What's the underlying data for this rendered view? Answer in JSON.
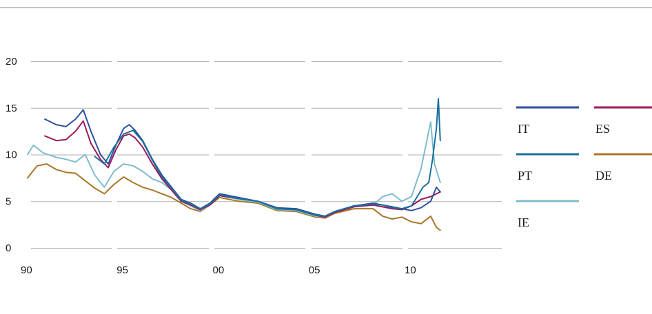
{
  "chart_data": {
    "type": "line",
    "title": "",
    "xlabel": "",
    "ylabel": "",
    "xlim": [
      1990,
      2015
    ],
    "ylim": [
      0,
      20
    ],
    "x_ticks": [
      {
        "value": 1990,
        "label": "90"
      },
      {
        "value": 1995,
        "label": "95"
      },
      {
        "value": 2000,
        "label": "00"
      },
      {
        "value": 2005,
        "label": "05"
      },
      {
        "value": 2010,
        "label": "10"
      }
    ],
    "y_ticks": [
      0,
      5,
      10,
      15,
      20
    ],
    "grid": true,
    "legend_position": "right",
    "colors": {
      "IT": "#2e4f9c",
      "ES": "#9b1a5c",
      "PT": "#19709e",
      "DE": "#a87527",
      "IE": "#7dbccd",
      "grid": "#b0b0b0",
      "top_rule": "#8a8a8a"
    },
    "series": [
      {
        "name": "IT",
        "x": [
          1990.9,
          1991.5,
          1992.0,
          1992.5,
          1992.9,
          1993.3,
          1993.8,
          1994.2,
          1994.6,
          1995.0,
          1995.3,
          1995.6,
          1996.0,
          1996.5,
          1997.0,
          1997.5,
          1998.0,
          1998.5,
          1999.0,
          1999.5,
          2000.0,
          2001.0,
          2002.0,
          2003.0,
          2004.0,
          2005.0,
          2005.5,
          2006.0,
          2007.0,
          2008.0,
          2008.5,
          2009.0,
          2009.5,
          2010.0,
          2010.5,
          2011.0,
          2011.3,
          2011.5
        ],
        "values": [
          13.8,
          13.2,
          13.0,
          13.8,
          14.8,
          12.5,
          10.0,
          9.0,
          11.0,
          12.8,
          13.2,
          12.6,
          11.5,
          9.5,
          7.8,
          6.5,
          5.2,
          4.8,
          4.2,
          4.8,
          5.8,
          5.4,
          5.0,
          4.3,
          4.2,
          3.6,
          3.4,
          3.9,
          4.5,
          4.8,
          4.6,
          4.4,
          4.2,
          4.0,
          4.3,
          5.0,
          6.5,
          6.0
        ]
      },
      {
        "name": "ES",
        "x": [
          1990.9,
          1991.5,
          1992.0,
          1992.5,
          1992.9,
          1993.3,
          1993.8,
          1994.2,
          1994.6,
          1995.0,
          1995.3,
          1995.6,
          1996.0,
          1996.5,
          1997.0,
          1997.5,
          1998.0,
          1998.5,
          1999.0,
          1999.5,
          2000.0,
          2001.0,
          2002.0,
          2003.0,
          2004.0,
          2005.0,
          2005.5,
          2006.0,
          2007.0,
          2008.0,
          2008.5,
          2009.0,
          2009.5,
          2010.0,
          2010.5,
          2011.0,
          2011.3,
          2011.5
        ],
        "values": [
          12.0,
          11.5,
          11.6,
          12.5,
          13.6,
          11.2,
          9.5,
          8.6,
          10.5,
          12.0,
          12.2,
          11.8,
          10.8,
          9.0,
          7.4,
          6.2,
          5.0,
          4.6,
          4.1,
          4.6,
          5.6,
          5.3,
          5.0,
          4.2,
          4.1,
          3.5,
          3.3,
          3.8,
          4.4,
          4.6,
          4.4,
          4.2,
          4.1,
          4.5,
          5.2,
          5.5,
          5.8,
          6.0
        ]
      },
      {
        "name": "PT",
        "x": [
          1993.5,
          1994.0,
          1994.5,
          1995.0,
          1995.5,
          1996.0,
          1996.5,
          1997.0,
          1997.5,
          1998.0,
          1998.5,
          1999.0,
          1999.5,
          2000.0,
          2001.0,
          2002.0,
          2003.0,
          2004.0,
          2005.0,
          2005.5,
          2006.0,
          2007.0,
          2008.0,
          2008.5,
          2009.0,
          2009.5,
          2010.0,
          2010.3,
          2010.6,
          2010.9,
          2011.1,
          2011.3,
          2011.4,
          2011.5
        ],
        "values": [
          9.8,
          9.0,
          10.8,
          12.2,
          12.6,
          11.4,
          9.4,
          7.6,
          6.4,
          5.1,
          4.7,
          4.2,
          4.7,
          5.7,
          5.3,
          5.0,
          4.2,
          4.1,
          3.5,
          3.4,
          3.9,
          4.5,
          4.7,
          4.6,
          4.3,
          4.2,
          4.5,
          5.5,
          6.5,
          7.0,
          9.5,
          12.8,
          16.0,
          11.5
        ]
      },
      {
        "name": "DE",
        "x": [
          1990.0,
          1990.5,
          1991.0,
          1991.5,
          1992.0,
          1992.5,
          1993.0,
          1993.5,
          1994.0,
          1994.5,
          1995.0,
          1995.5,
          1996.0,
          1996.5,
          1997.0,
          1997.5,
          1998.0,
          1998.5,
          1999.0,
          1999.5,
          2000.0,
          2001.0,
          2002.0,
          2003.0,
          2004.0,
          2005.0,
          2005.5,
          2006.0,
          2007.0,
          2008.0,
          2008.5,
          2009.0,
          2009.5,
          2010.0,
          2010.5,
          2011.0,
          2011.3,
          2011.5
        ],
        "values": [
          7.5,
          8.8,
          9.0,
          8.4,
          8.1,
          8.0,
          7.2,
          6.4,
          5.8,
          6.8,
          7.6,
          7.0,
          6.5,
          6.2,
          5.8,
          5.4,
          4.8,
          4.2,
          3.9,
          4.6,
          5.4,
          5.0,
          4.8,
          4.0,
          3.9,
          3.3,
          3.2,
          3.7,
          4.2,
          4.2,
          3.4,
          3.1,
          3.3,
          2.8,
          2.6,
          3.4,
          2.2,
          1.9
        ]
      },
      {
        "name": "IE",
        "x": [
          1990.0,
          1990.3,
          1990.8,
          1991.5,
          1992.0,
          1992.5,
          1993.0,
          1993.5,
          1994.0,
          1994.5,
          1995.0,
          1995.5,
          1996.0,
          1996.5,
          1997.0,
          1997.5,
          1998.0,
          1998.5,
          1999.0,
          1999.5,
          2000.0,
          2001.0,
          2002.0,
          2003.0,
          2004.0,
          2005.0,
          2005.5,
          2006.0,
          2007.0,
          2008.0,
          2008.5,
          2009.0,
          2009.5,
          2010.0,
          2010.5,
          2010.8,
          2011.0,
          2011.2,
          2011.5
        ],
        "values": [
          10.0,
          11.0,
          10.2,
          9.7,
          9.5,
          9.2,
          10.0,
          7.8,
          6.5,
          8.2,
          9.0,
          8.8,
          8.2,
          7.4,
          7.0,
          6.2,
          5.0,
          4.5,
          4.0,
          4.6,
          5.6,
          5.2,
          4.9,
          4.1,
          4.0,
          3.4,
          3.3,
          3.8,
          4.5,
          4.6,
          5.5,
          5.8,
          5.0,
          5.5,
          8.5,
          11.5,
          13.5,
          9.0,
          7.0
        ]
      }
    ]
  }
}
